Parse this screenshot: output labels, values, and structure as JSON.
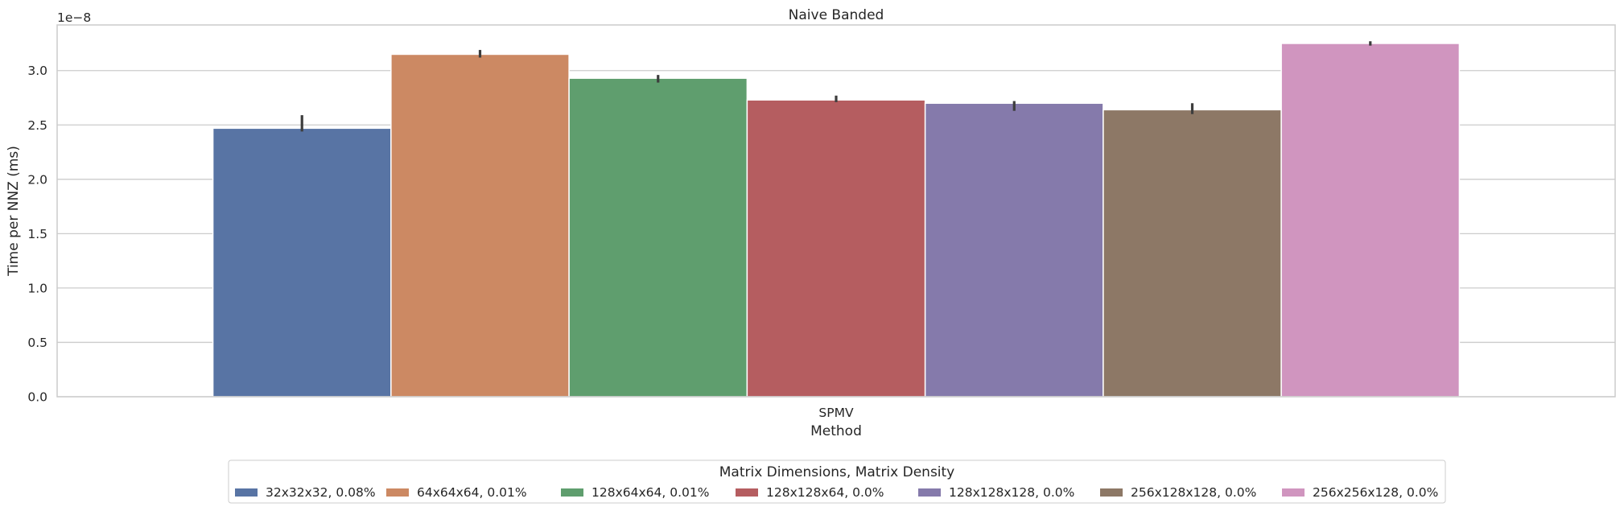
{
  "chart_data": {
    "type": "bar",
    "title": "Naive Banded",
    "xlabel": "Method",
    "ylabel": "Time per NNZ (ms)",
    "offset_text": "1e−8",
    "categories": [
      "SPMV"
    ],
    "ylim": [
      0,
      3.42
    ],
    "yticks": [
      0.0,
      0.5,
      1.0,
      1.5,
      2.0,
      2.5,
      3.0
    ],
    "ytick_labels": [
      "0.0",
      "0.5",
      "1.0",
      "1.5",
      "2.0",
      "2.5",
      "3.0"
    ],
    "grid": true,
    "legend": {
      "title": "Matrix Dimensions, Matrix Density",
      "placement": "bottom-center"
    },
    "series": [
      {
        "name": "32x32x32, 0.08%",
        "color": "#5874a4",
        "values": [
          2.47
        ],
        "err_low": [
          2.44
        ],
        "err_high": [
          2.59
        ]
      },
      {
        "name": "64x64x64, 0.01%",
        "color": "#cc8963",
        "values": [
          3.15
        ],
        "err_low": [
          3.12
        ],
        "err_high": [
          3.19
        ]
      },
      {
        "name": "128x64x64, 0.01%",
        "color": "#5f9e6e",
        "values": [
          2.93
        ],
        "err_low": [
          2.89
        ],
        "err_high": [
          2.96
        ]
      },
      {
        "name": "128x128x64, 0.0%",
        "color": "#b55d60",
        "values": [
          2.73
        ],
        "err_low": [
          2.71
        ],
        "err_high": [
          2.77
        ]
      },
      {
        "name": "128x128x128, 0.0%",
        "color": "#857aab",
        "values": [
          2.7
        ],
        "err_low": [
          2.63
        ],
        "err_high": [
          2.72
        ]
      },
      {
        "name": "256x128x128, 0.0%",
        "color": "#8d7866",
        "values": [
          2.64
        ],
        "err_low": [
          2.6
        ],
        "err_high": [
          2.7
        ]
      },
      {
        "name": "256x256x128, 0.0%",
        "color": "#d095bf",
        "values": [
          3.25
        ],
        "err_low": [
          3.23
        ],
        "err_high": [
          3.27
        ]
      }
    ]
  }
}
